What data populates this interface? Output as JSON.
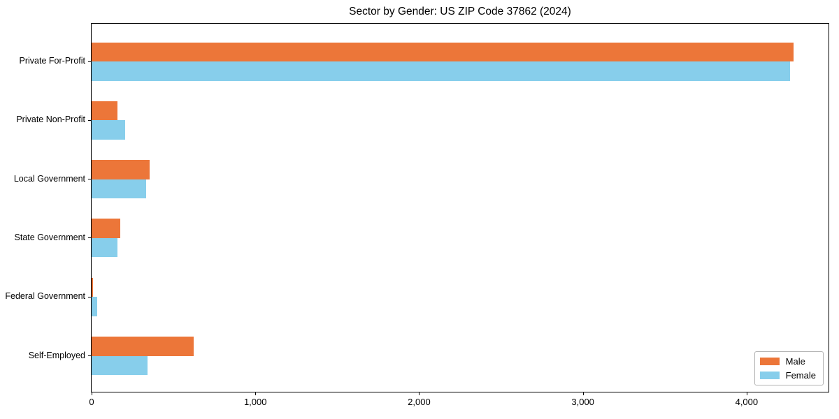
{
  "chart_data": {
    "type": "bar",
    "orientation": "horizontal",
    "title": "Sector by Gender: US ZIP Code 37862 (2024)",
    "categories": [
      "Private For-Profit",
      "Private Non-Profit",
      "Local Government",
      "State Government",
      "Federal Government",
      "Self-Employed"
    ],
    "series": [
      {
        "name": "Male",
        "color": "#EC7639",
        "values": [
          4285,
          157,
          356,
          175,
          7,
          622
        ]
      },
      {
        "name": "Female",
        "color": "#87CEEB",
        "values": [
          4265,
          206,
          334,
          160,
          34,
          340
        ]
      }
    ],
    "xlabel": "",
    "ylabel": "",
    "xlim": [
      0,
      4500
    ],
    "x_ticks": [
      {
        "value": 0,
        "label": "0"
      },
      {
        "value": 1000,
        "label": "1,000"
      },
      {
        "value": 2000,
        "label": "2,000"
      },
      {
        "value": 3000,
        "label": "3,000"
      },
      {
        "value": 4000,
        "label": "4,000"
      }
    ],
    "grid": false,
    "legend": {
      "position": "lower right",
      "items": [
        "Male",
        "Female"
      ]
    },
    "colors": {
      "axis": "#000000",
      "text": "#000000",
      "legend_border": "#b3b3b3",
      "background": "#ffffff"
    }
  }
}
